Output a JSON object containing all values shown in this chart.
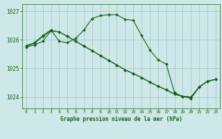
{
  "title": "Graphe pression niveau de la mer (hPa)",
  "background_color": "#cce8e8",
  "grid_color": "#99bbbb",
  "line_color": "#1a5c1a",
  "marker_color": "#1a5c1a",
  "xlim": [
    -0.5,
    23.5
  ],
  "ylim": [
    1023.6,
    1027.25
  ],
  "yticks": [
    1024,
    1025,
    1026,
    1027
  ],
  "xticks": [
    0,
    1,
    2,
    3,
    4,
    5,
    6,
    7,
    8,
    9,
    10,
    11,
    12,
    13,
    14,
    15,
    16,
    17,
    18,
    19,
    20,
    21,
    22,
    23
  ],
  "series": [
    {
      "x": [
        0,
        1,
        2,
        3,
        4,
        5,
        6,
        7,
        8,
        9,
        10,
        11,
        12,
        13,
        14,
        15,
        16,
        17,
        18,
        19,
        20,
        21,
        22,
        23
      ],
      "y": [
        1025.8,
        1025.9,
        1026.15,
        1026.35,
        1025.95,
        1025.9,
        1026.05,
        1026.35,
        1026.75,
        1026.85,
        1026.88,
        1026.88,
        1026.72,
        1026.68,
        1026.15,
        1025.65,
        1025.3,
        1025.15,
        1024.15,
        1024.02,
        1024.0,
        1024.35,
        1024.55,
        1024.62
      ]
    },
    {
      "x": [
        0,
        1,
        2,
        3,
        4,
        5,
        6,
        7,
        8,
        9,
        10,
        11,
        12,
        13,
        14,
        15,
        16,
        17,
        18,
        19,
        20,
        21,
        22,
        23
      ],
      "y": [
        1025.78,
        1025.88,
        1026.12,
        1026.32,
        1026.28,
        1026.12,
        1025.95,
        1025.78,
        1025.62,
        1025.45,
        1025.28,
        1025.12,
        1024.95,
        1024.82,
        1024.68,
        1024.52,
        1024.38,
        1024.25,
        1024.1,
        1024.02,
        1024.0,
        1024.35,
        1024.55,
        1024.62
      ]
    },
    {
      "x": [
        0,
        1,
        2,
        3,
        4,
        5,
        6,
        7,
        8,
        9,
        10,
        11,
        12,
        13,
        14,
        15,
        16,
        17,
        18,
        19,
        20,
        21,
        22,
        23
      ],
      "y": [
        1025.75,
        1025.82,
        1025.95,
        1026.32,
        1026.28,
        1026.12,
        1025.95,
        1025.78,
        1025.62,
        1025.45,
        1025.28,
        1025.12,
        1024.95,
        1024.82,
        1024.68,
        1024.52,
        1024.38,
        1024.25,
        1024.1,
        1024.02,
        1023.95,
        1024.35,
        1024.55,
        1024.62
      ]
    }
  ]
}
